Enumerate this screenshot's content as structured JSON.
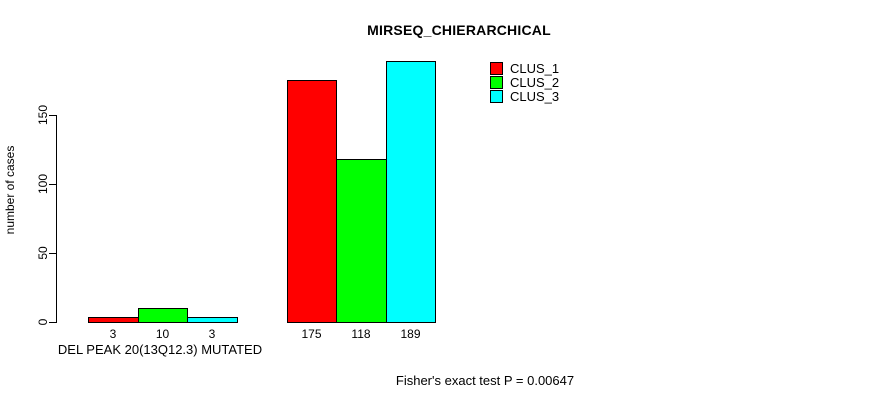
{
  "chart_data": {
    "type": "bar",
    "title": "MIRSEQ_CHIERARCHICAL",
    "ylabel": "number of cases",
    "xlabel": "DEL PEAK 20(13Q12.3) MUTATED",
    "yticks": [
      0,
      50,
      100,
      150
    ],
    "ylim": [
      0,
      195
    ],
    "grid": false,
    "legend": {
      "position": "top-right",
      "entries": [
        {
          "label": "CLUS_1",
          "color": "#FF0000"
        },
        {
          "label": "CLUS_2",
          "color": "#00FF00"
        },
        {
          "label": "CLUS_3",
          "color": "#00FFFF"
        }
      ]
    },
    "groups": [
      {
        "label": "DEL PEAK 20(13Q12.3) MUTATED",
        "values": [
          3,
          10,
          3
        ]
      },
      {
        "label": "",
        "values": [
          175,
          118,
          189
        ]
      }
    ],
    "annotation": "Fisher's exact test P = 0.00647"
  }
}
